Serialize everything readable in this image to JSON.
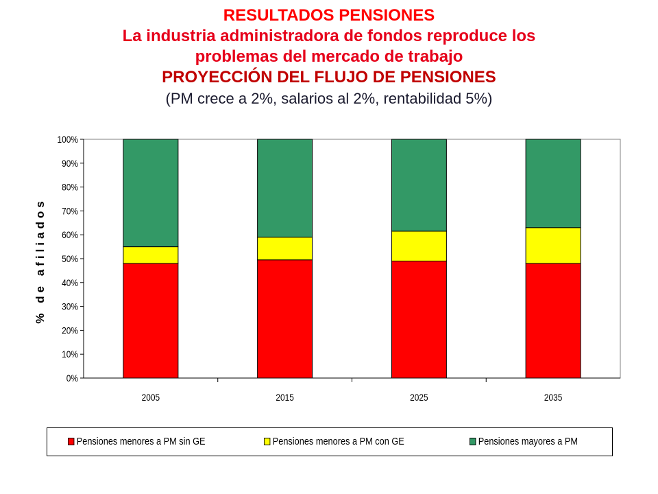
{
  "header": {
    "line1": "RESULTADOS PENSIONES",
    "line2": "La industria administradora de fondos reproduce los",
    "line3": "problemas del mercado de trabajo",
    "line4": "PROYECCIÓN DEL FLUJO DE PENSIONES",
    "line5": "(PM crece a 2%, salarios al 2%, rentabilidad 5%)"
  },
  "colors": {
    "sin_ge": "#ff0000",
    "con_ge": "#ffff00",
    "mayores": "#339966"
  },
  "chart_data": {
    "type": "bar",
    "stacked": true,
    "categories": [
      "2005",
      "2015",
      "2025",
      "2035"
    ],
    "series": [
      {
        "name": "Pensiones menores a PM sin GE",
        "values": [
          48,
          49.5,
          49,
          48
        ]
      },
      {
        "name": "Pensiones menores a PM con GE",
        "values": [
          7,
          9.5,
          12.5,
          15
        ]
      },
      {
        "name": "Pensiones mayores a PM",
        "values": [
          45,
          41,
          38.5,
          37
        ]
      }
    ],
    "ylabel": "% de afiliados",
    "ylim": [
      0,
      100
    ],
    "yticks": [
      "0%",
      "10%",
      "20%",
      "30%",
      "40%",
      "50%",
      "60%",
      "70%",
      "80%",
      "90%",
      "100%"
    ],
    "grid": false,
    "legend_position": "bottom"
  }
}
